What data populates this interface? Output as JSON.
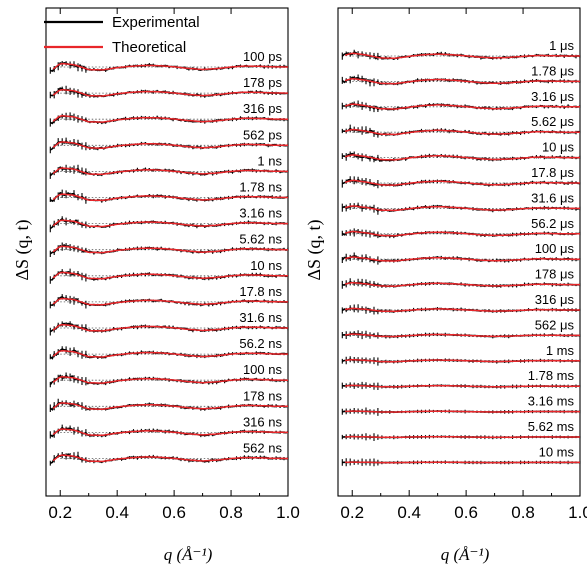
{
  "colors": {
    "experimental": "#000000",
    "theoretical": "#e8262a",
    "baseline": "#555555",
    "axis": "#000000"
  },
  "legend": {
    "placement": "top-left of left panel",
    "experimental_label": "Experimental",
    "theoretical_label": "Theoretical"
  },
  "chart_data": [
    {
      "type": "line",
      "panel": "left",
      "xlabel": "q (Å⁻¹)",
      "ylabel": "ΔS (q, t)",
      "xlim": [
        0.15,
        1.0
      ],
      "x_ticks": [
        "0.2",
        "0.4",
        "0.6",
        "0.8",
        "1.0"
      ],
      "y_ticks": [],
      "grid": false,
      "vertical_offset_traces": true,
      "series_labels": [
        "100 ps",
        "178 ps",
        "316 ps",
        "562 ps",
        "1 ns",
        "1.78 ns",
        "3.16 ns",
        "5.62 ns",
        "10 ns",
        "17.8 ns",
        "31.6 ns",
        "56.2 ns",
        "100 ns",
        "178 ns",
        "316 ns",
        "562 ns"
      ],
      "series_names": [
        "Experimental",
        "Theoretical"
      ],
      "x": [
        0.17,
        0.2,
        0.25,
        0.3,
        0.35,
        0.4,
        0.45,
        0.5,
        0.55,
        0.6,
        0.65,
        0.7,
        0.75,
        0.8,
        0.85,
        0.9,
        0.95,
        1.0
      ],
      "profile": [
        -0.5,
        0.55,
        0.35,
        -0.4,
        -0.45,
        -0.1,
        0.12,
        0.25,
        0.2,
        0.02,
        -0.22,
        -0.38,
        -0.25,
        0.0,
        0.15,
        0.1,
        0.02,
        0.0
      ],
      "amplitudes": [
        1.0,
        1.0,
        1.0,
        1.0,
        1.0,
        1.0,
        1.0,
        1.0,
        1.0,
        1.0,
        1.0,
        1.0,
        1.0,
        1.0,
        1.0,
        1.0
      ]
    },
    {
      "type": "line",
      "panel": "right",
      "xlabel": "q (Å⁻¹)",
      "ylabel": "ΔS (q, t)",
      "xlim": [
        0.15,
        1.0
      ],
      "x_ticks": [
        "0.2",
        "0.4",
        "0.6",
        "0.8",
        "1.0"
      ],
      "y_ticks": [],
      "grid": false,
      "vertical_offset_traces": true,
      "series_labels": [
        "1 μs",
        "1.78 μs",
        "3.16 μs",
        "5.62 μs",
        "10 μs",
        "17.8 μs",
        "31.6 μs",
        "56.2 μs",
        "100 μs",
        "178 μs",
        "316 μs",
        "562 μs",
        "1 ms",
        "1.78 ms",
        "3.16 ms",
        "5.62 ms",
        "10 ms"
      ],
      "series_names": [
        "Experimental",
        "Theoretical"
      ],
      "x": [
        0.17,
        0.2,
        0.25,
        0.3,
        0.35,
        0.4,
        0.45,
        0.5,
        0.55,
        0.6,
        0.65,
        0.7,
        0.75,
        0.8,
        0.85,
        0.9,
        0.95,
        1.0
      ],
      "profile": [
        0.05,
        0.45,
        0.15,
        -0.3,
        -0.35,
        -0.05,
        0.2,
        0.3,
        0.2,
        0.02,
        -0.18,
        -0.3,
        -0.22,
        -0.05,
        0.08,
        0.05,
        0.0,
        0.0
      ],
      "amplitudes": [
        1.0,
        1.0,
        1.0,
        1.0,
        1.0,
        0.95,
        0.9,
        0.85,
        0.8,
        0.7,
        0.6,
        0.5,
        0.4,
        0.3,
        0.2,
        0.15,
        0.1
      ]
    }
  ]
}
